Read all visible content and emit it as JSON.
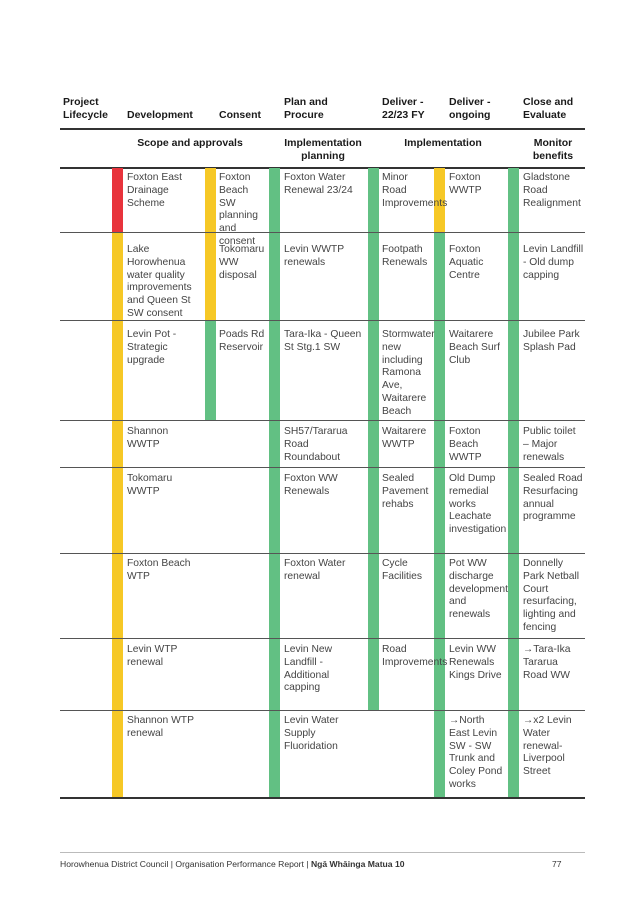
{
  "headers": {
    "lifecycle": "Project Lifecycle",
    "development": "Development",
    "consent": "Consent",
    "plan": "Plan and Procure",
    "deliver": "Deliver - 22/23 FY",
    "ongoing": "Deliver - ongoing",
    "close": "Close and Evaluate"
  },
  "subheaders": {
    "scope": "Scope and approvals",
    "implementation_planning": "Implementation planning",
    "implementation": "Implementation",
    "monitor": "Monitor benefits"
  },
  "rows": [
    {
      "development": "Foxton East Drainage Scheme",
      "consent": "Foxton Beach SW planning and consent",
      "plan": "Foxton Water Renewal 23/24",
      "deliver": "Minor Road Improvements",
      "ongoing": "Foxton WWTP",
      "close": "Gladstone Road Realignment"
    },
    {
      "development": "Lake Horowhenua water quality improvements and Queen St SW consent",
      "consent": "Tokomaru WW disposal",
      "plan": "Levin WWTP renewals",
      "deliver": "Footpath Renewals",
      "ongoing": "Foxton Aquatic Centre",
      "close": "Levin Landfill - Old dump capping"
    },
    {
      "development": "Levin Pot - Strategic upgrade",
      "consent": "Poads Rd Reservoir",
      "plan": "Tara-Ika - Queen St Stg.1 SW",
      "deliver": "Stormwater new including Ramona Ave, Waitarere Beach",
      "ongoing": "Waitarere Beach Surf Club",
      "close": "Jubilee Park Splash Pad"
    },
    {
      "development": "Shannon WWTP",
      "consent": "",
      "plan": "SH57/Tararua Road Roundabout",
      "deliver": "Waitarere WWTP",
      "ongoing": "Foxton Beach WWTP",
      "close": "Public toilet – Major renewals"
    },
    {
      "development": "Tokomaru WWTP",
      "consent": "",
      "plan": "Foxton WW Renewals",
      "deliver": "Sealed Pavement rehabs",
      "ongoing": "Old Dump remedial works Leachate investigation",
      "close": "Sealed Road Resurfacing annual programme"
    },
    {
      "development": "Foxton Beach WTP",
      "consent": "",
      "plan": "Foxton Water renewal",
      "deliver": "Cycle Facilities",
      "ongoing": "Pot WW discharge development and renewals",
      "close": "Donnelly Park Netball Court resurfacing, lighting and fencing"
    },
    {
      "development": "Levin WTP renewal",
      "consent": "",
      "plan": "Levin New Landfill - Additional capping",
      "deliver": "Road Improvements",
      "ongoing": "Levin WW Renewals Kings Drive",
      "close": "→Tara-Ika Tararua Road WW"
    },
    {
      "development": "Shannon WTP renewal",
      "consent": "",
      "plan": "Levin Water Supply Fluoridation",
      "deliver": "",
      "ongoing": "→North East Levin SW - SW Trunk and Coley Pond works",
      "close": "→x2 Levin Water renewal-Liverpool Street"
    }
  ],
  "footer": {
    "left": "Horowhenua District Council | Organisation Performance Report | ",
    "bold": "Ngā Whāinga Matua 10",
    "page": "77"
  },
  "colors": {
    "green": "#62c083",
    "yellow": "#f6c826",
    "red": "#e8333c"
  }
}
